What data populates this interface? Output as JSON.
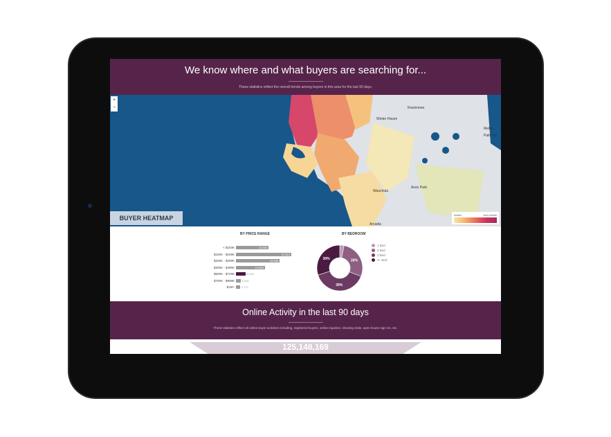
{
  "header": {
    "title": "We know where and what buyers are searching for...",
    "subtitle": "These statistics reflect the overall trends among buyers in this area for the last 90 days."
  },
  "map": {
    "zoom_in": "+",
    "zoom_out": "−",
    "badge": "BUYER HEATMAP",
    "legend": {
      "low": "Active",
      "high": "Very Active",
      "colors": [
        "#fbe6a8",
        "#f7b56e",
        "#e8705e",
        "#c9365e",
        "#a42a5a"
      ]
    },
    "places": [
      "Kissimmee",
      "Winter Haven",
      "Melbo",
      "Palm Ba",
      "Avon Park",
      "Wauchula",
      "Arcadia"
    ]
  },
  "price": {
    "title": "BY PRICE RANGE",
    "rows": [
      {
        "label": "< $150K",
        "value": 22000,
        "text": "22,000"
      },
      {
        "label": "$150K - $199K",
        "value": 37513,
        "text": "37,513"
      },
      {
        "label": "$200K - $299K",
        "value": 29638,
        "text": "29,638"
      },
      {
        "label": "$300K - $499K",
        "value": 19639,
        "text": "19,639"
      },
      {
        "label": "$500K - $749K",
        "value": 6529,
        "text": "6,529"
      },
      {
        "label": "$750K - $999K",
        "value": 3048,
        "text": "3,048"
      },
      {
        "label": "$1M+",
        "value": 2771,
        "text": "2,771"
      }
    ]
  },
  "bedroom": {
    "title": "BY BEDROOM",
    "slices": [
      {
        "label": "1 Bed",
        "value": 3,
        "color": "#b89ab0"
      },
      {
        "label": "2 Bed",
        "value": 28,
        "text": "28%",
        "color": "#8e5f83"
      },
      {
        "label": "3 Bed",
        "value": 39,
        "text": "39%",
        "color": "#6c3a62"
      },
      {
        "label": "4+ Bed",
        "value": 30,
        "text": "30%",
        "color": "#4a1a40"
      }
    ]
  },
  "activity": {
    "title": "Online Activity in the last 90 days",
    "subtitle": "These statistics reflect all online buyer activities including, registered buyers, online inquiries, showing visits, open house sign ins, etc.",
    "total": "125,148,169"
  }
}
